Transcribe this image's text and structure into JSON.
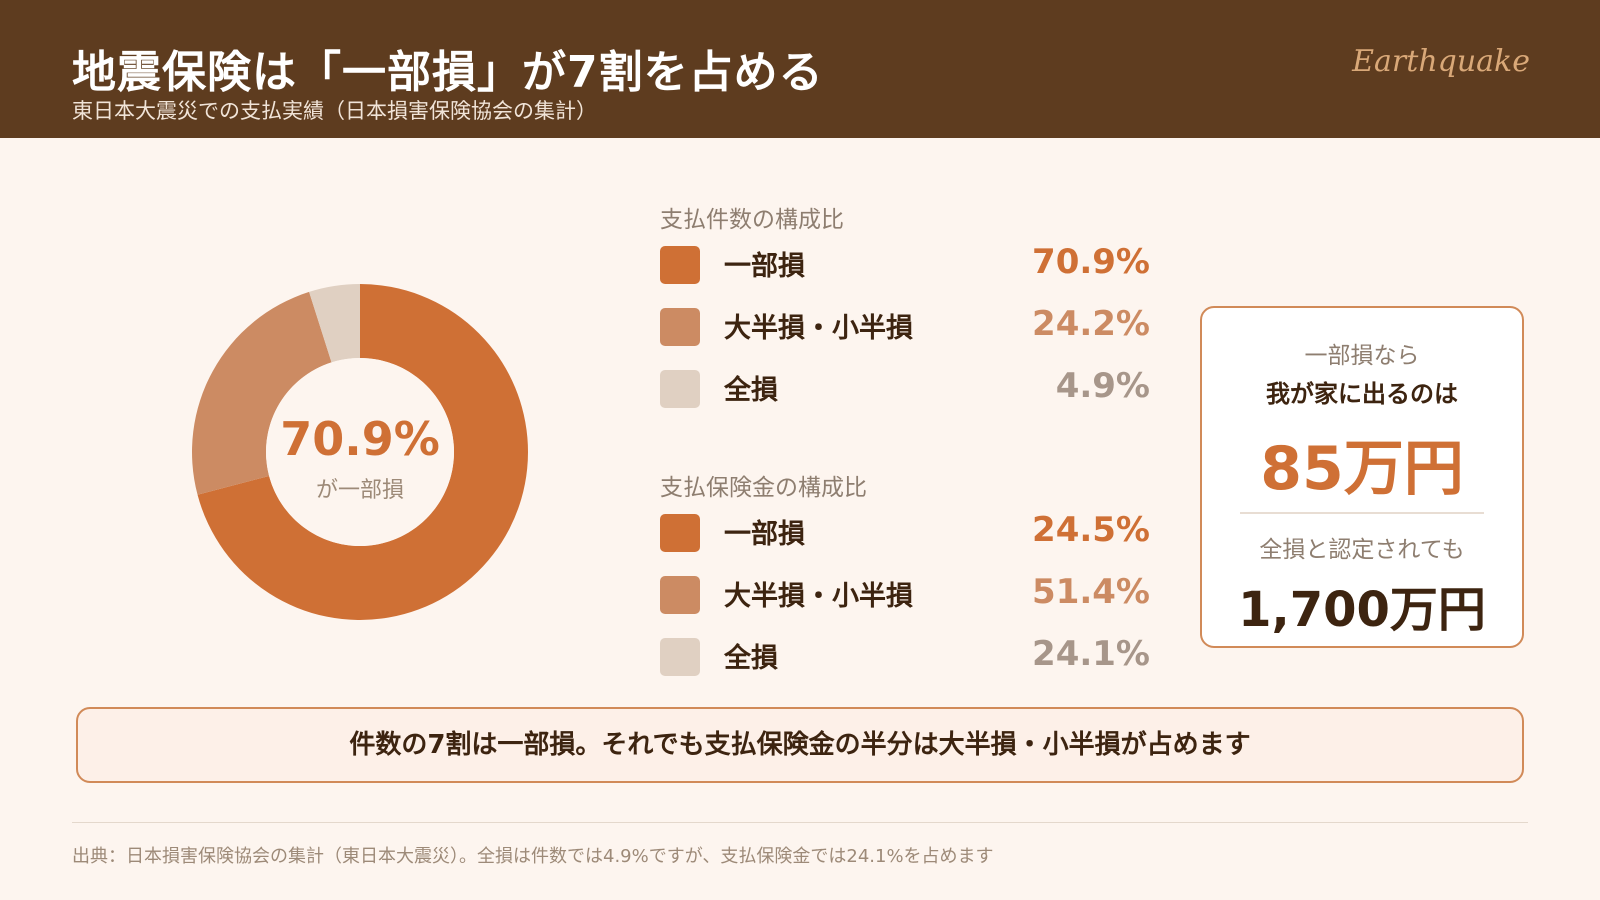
{
  "header": {
    "title": "地震保険は「一部損」が7割を占める",
    "subtitle": "東日本大震災での支払実績（日本損害保険協会の集計）",
    "brand": "Earthquake"
  },
  "colors": {
    "header_bg": "#5e3c1f",
    "partial": "#cf7035",
    "half": "#cc8b63",
    "total": "#e0d0c2",
    "text_dark": "#3d2410",
    "page_bg": "#fdf5ef"
  },
  "chart_data": [
    {
      "type": "pie",
      "variant": "donut",
      "title": "支払件数の構成比",
      "categories": [
        "一部損",
        "大半損・小半損",
        "全損"
      ],
      "values": [
        70.9,
        24.2,
        4.9
      ],
      "colors": [
        "#cf7035",
        "#cc8b63",
        "#e0d0c2"
      ],
      "center_value": "70.9%",
      "center_caption": "が一部損",
      "legend": [
        {
          "label": "一部損",
          "value": "70.9%"
        },
        {
          "label": "大半損・小半損",
          "value": "24.2%"
        },
        {
          "label": "全損",
          "value": "4.9%"
        }
      ]
    },
    {
      "type": "table",
      "title": "支払保険金の構成比",
      "categories": [
        "一部損",
        "大半損・小半損",
        "全損"
      ],
      "values": [
        24.5,
        51.4,
        24.1
      ],
      "colors": [
        "#cf7035",
        "#cc8b63",
        "#e0d0c2"
      ],
      "legend": [
        {
          "label": "一部損",
          "value": "24.5%"
        },
        {
          "label": "大半損・小半損",
          "value": "51.4%"
        },
        {
          "label": "全損",
          "value": "24.1%"
        }
      ]
    }
  ],
  "card": {
    "line1": "一部損なら",
    "line2": "我が家に出るのは",
    "amount1": "85万円",
    "line3": "全損と認定されても",
    "amount2": "1,700万円"
  },
  "banner": "件数の7割は一部損。それでも支払保険金の半分は大半損・小半損が占めます",
  "footer": "出典：日本損害保険協会の集計（東日本大震災）。全損は件数では4.9%ですが、支払保険金では24.1%を占めます"
}
